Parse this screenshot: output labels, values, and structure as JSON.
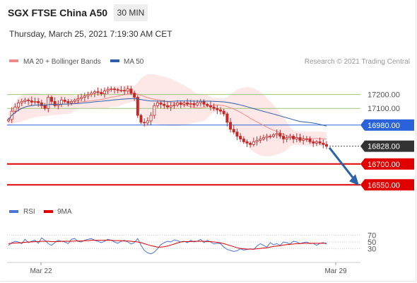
{
  "header": {
    "title": "SGX FTSE China A50",
    "timeframe": "30 MIN",
    "datetime": "Thursday, March 25, 2021 7:19:30 AM CET"
  },
  "credit": "Research © 2021 Trading Central",
  "colors": {
    "bollinger": "#f08a8a",
    "bollinger_fill": "#fde3e3",
    "ma50": "#2e5fa8",
    "candle": "#c62828",
    "resistance": "#9bc97a",
    "pivot": "#2962d9",
    "support": "#e00000",
    "price_tag": "#333333",
    "forecast_arrow": "#2a64a8",
    "rsi": "#4a76d8",
    "rsi_ma": "#e00000"
  },
  "chart_data": [
    {
      "type": "candlestick",
      "legend": [
        {
          "name": "MA 20 + Bollinger Bands",
          "color": "#f08a8a"
        },
        {
          "name": "MA 50",
          "color": "#2e5fa8"
        }
      ],
      "ylim": [
        16480,
        17320
      ],
      "x_ticks": [
        "Mar 22",
        "Mar 29"
      ],
      "levels": [
        {
          "label": "17200.00",
          "value": 17200,
          "kind": "resistance"
        },
        {
          "label": "17100.00",
          "value": 17100,
          "kind": "resistance"
        },
        {
          "label": "16980.00",
          "value": 16980,
          "kind": "pivot"
        },
        {
          "label": "16828.00",
          "value": 16828,
          "kind": "last"
        },
        {
          "label": "16700.00",
          "value": 16700,
          "kind": "support"
        },
        {
          "label": "16550.00",
          "value": 16550,
          "kind": "support"
        }
      ],
      "close": [
        17020,
        17080,
        17110,
        17140,
        17150,
        17160,
        17155,
        17145,
        17150,
        17140,
        17120,
        17100,
        17180,
        17150,
        17120,
        17130,
        17160,
        17150,
        17140,
        17150,
        17160,
        17170,
        17180,
        17190,
        17200,
        17210,
        17220,
        17215,
        17205,
        17225,
        17235,
        17240,
        17235,
        17230,
        17230,
        17225,
        17240,
        17210,
        17180,
        17050,
        17000,
        16995,
        17010,
        17050,
        17120,
        17140,
        17130,
        17120,
        17110,
        17120,
        17125,
        17140,
        17130,
        17140,
        17130,
        17135,
        17125,
        17140,
        17150,
        17130,
        17120,
        17110,
        17100,
        17090,
        17080,
        17060,
        17000,
        16950,
        16930,
        16900,
        16880,
        16860,
        16850,
        16840,
        16860,
        16870,
        16880,
        16890,
        16900,
        16900,
        16910,
        16920,
        16900,
        16880,
        16890,
        16900,
        16880,
        16890,
        16870,
        16880,
        16880,
        16860,
        16850,
        16860,
        16850,
        16840,
        16828
      ]
    },
    {
      "type": "line",
      "legend": [
        {
          "name": "RSI",
          "color": "#4a76d8"
        },
        {
          "name": "9MA",
          "color": "#e00000"
        }
      ],
      "ylim": [
        0,
        100
      ],
      "y_ticks": [
        "70",
        "50",
        "30"
      ],
      "series": [
        {
          "name": "RSI",
          "values": [
            40,
            48,
            52,
            50,
            45,
            58,
            48,
            52,
            55,
            46,
            62,
            55,
            45,
            40,
            48,
            55,
            52,
            50,
            45,
            58,
            60,
            52,
            50,
            55,
            58,
            60,
            55,
            52,
            48,
            52,
            58,
            55,
            50,
            46,
            52,
            55,
            50,
            44,
            48,
            60,
            40,
            25,
            18,
            15,
            20,
            30,
            42,
            48,
            52,
            50,
            56,
            54,
            50,
            52,
            48,
            55,
            50,
            52,
            58,
            48,
            55,
            50,
            44,
            46,
            45,
            35,
            28,
            25,
            22,
            24,
            30,
            26,
            28,
            30,
            28,
            38,
            45,
            40,
            35,
            48,
            42,
            45,
            40,
            50,
            48,
            44,
            52,
            50,
            45,
            48,
            50,
            45,
            46,
            40,
            46,
            48,
            44
          ]
        },
        {
          "name": "9MA",
          "values": [
            45,
            46,
            47,
            47,
            48,
            49,
            50,
            50,
            51,
            51,
            52,
            52,
            52,
            51,
            51,
            51,
            52,
            52,
            52,
            52,
            53,
            53,
            53,
            54,
            54,
            55,
            55,
            55,
            55,
            55,
            55,
            55,
            54,
            54,
            54,
            53,
            53,
            52,
            51,
            50,
            48,
            45,
            42,
            39,
            37,
            35,
            35,
            36,
            38,
            41,
            44,
            47,
            50,
            51,
            51,
            51,
            52,
            52,
            52,
            52,
            51,
            51,
            50,
            49,
            47,
            45,
            42,
            39,
            36,
            33,
            31,
            30,
            29,
            29,
            29,
            30,
            31,
            32,
            33,
            35,
            37,
            38,
            39,
            41,
            42,
            43,
            44,
            45,
            45,
            46,
            46,
            46,
            46,
            46,
            46,
            46,
            46
          ]
        }
      ]
    }
  ]
}
